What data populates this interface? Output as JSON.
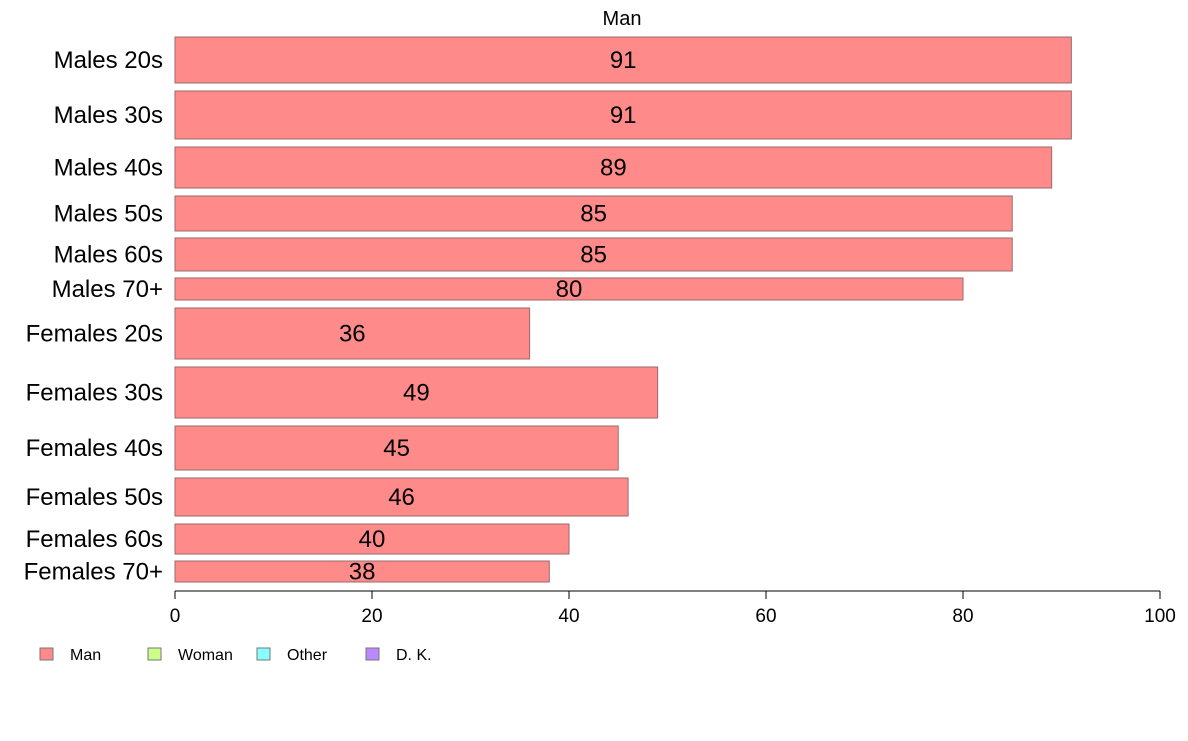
{
  "chart_data": {
    "type": "bar",
    "orientation": "horizontal",
    "title": "Man",
    "xlabel": "",
    "ylabel": "",
    "xlim": [
      0,
      100
    ],
    "x_ticks": [
      0,
      20,
      40,
      60,
      80,
      100
    ],
    "grid": false,
    "legend_position": "bottom-left",
    "categories": [
      "Males 20s",
      "Males 30s",
      "Males 40s",
      "Males 50s",
      "Males 60s",
      "Males 70+",
      "Females 20s",
      "Females 30s",
      "Females 40s",
      "Females 50s",
      "Females 60s",
      "Females 70+"
    ],
    "values": [
      91,
      91,
      89,
      85,
      85,
      80,
      36,
      49,
      45,
      46,
      40,
      38
    ],
    "series": [
      {
        "name": "Man",
        "color": "#ff8a8a"
      },
      {
        "name": "Woman",
        "color": "#ccff88"
      },
      {
        "name": "Other",
        "color": "#88ffff"
      },
      {
        "name": "D. K.",
        "color": "#bb88ff"
      }
    ]
  }
}
